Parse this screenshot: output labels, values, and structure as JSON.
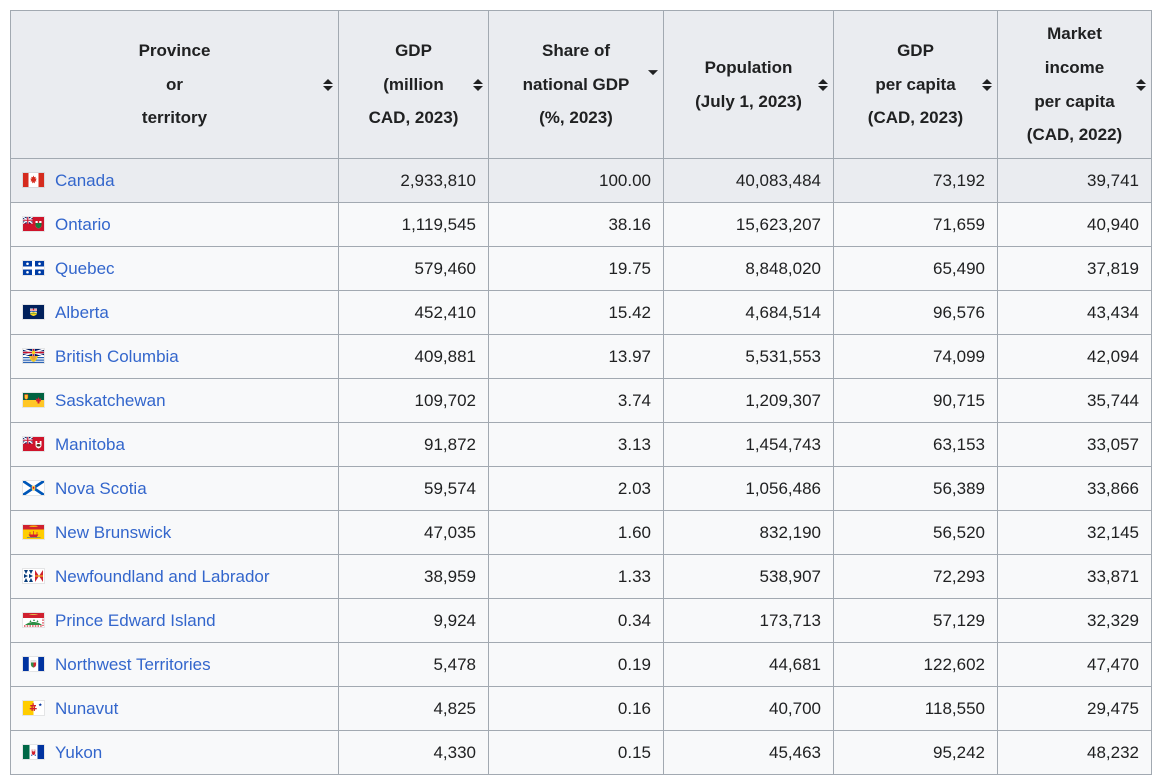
{
  "colors": {
    "header_bg": "#eaecf0",
    "body_bg": "#f8f9fa",
    "highlight_row_bg": "#eaecf0",
    "border": "#a2a9b1",
    "link": "#3366cc",
    "text": "#202122"
  },
  "table": {
    "columns": [
      {
        "id": "name",
        "label_lines": [
          "Province",
          "or",
          "territory"
        ],
        "sort_state": "unsorted",
        "align": "left"
      },
      {
        "id": "gdp",
        "label_lines": [
          "GDP",
          "(million",
          "CAD, 2023)"
        ],
        "sort_state": "unsorted",
        "align": "right"
      },
      {
        "id": "share",
        "label_lines": [
          "Share of",
          "national GDP",
          "(%, 2023)"
        ],
        "sort_state": "desc",
        "align": "right"
      },
      {
        "id": "population",
        "label_lines": [
          "Population",
          "(July 1, 2023)"
        ],
        "sort_state": "unsorted",
        "align": "right"
      },
      {
        "id": "gdp_per_capita",
        "label_lines": [
          "GDP",
          "per capita",
          "(CAD, 2023)"
        ],
        "sort_state": "unsorted",
        "align": "right"
      },
      {
        "id": "market_income",
        "label_lines": [
          "Market",
          "income",
          "per capita",
          "(CAD, 2022)"
        ],
        "sort_state": "unsorted",
        "align": "right"
      }
    ],
    "rows": [
      {
        "name": "Canada",
        "flag": "canada-flag",
        "highlight": true,
        "gdp": "2,933,810",
        "share": "100.00",
        "population": "40,083,484",
        "gdp_per_capita": "73,192",
        "market_income": "39,741"
      },
      {
        "name": "Ontario",
        "flag": "ontario-flag",
        "highlight": false,
        "gdp": "1,119,545",
        "share": "38.16",
        "population": "15,623,207",
        "gdp_per_capita": "71,659",
        "market_income": "40,940"
      },
      {
        "name": "Quebec",
        "flag": "quebec-flag",
        "highlight": false,
        "gdp": "579,460",
        "share": "19.75",
        "population": "8,848,020",
        "gdp_per_capita": "65,490",
        "market_income": "37,819"
      },
      {
        "name": "Alberta",
        "flag": "alberta-flag",
        "highlight": false,
        "gdp": "452,410",
        "share": "15.42",
        "population": "4,684,514",
        "gdp_per_capita": "96,576",
        "market_income": "43,434"
      },
      {
        "name": "British Columbia",
        "flag": "british-columbia-flag",
        "highlight": false,
        "gdp": "409,881",
        "share": "13.97",
        "population": "5,531,553",
        "gdp_per_capita": "74,099",
        "market_income": "42,094"
      },
      {
        "name": "Saskatchewan",
        "flag": "saskatchewan-flag",
        "highlight": false,
        "gdp": "109,702",
        "share": "3.74",
        "population": "1,209,307",
        "gdp_per_capita": "90,715",
        "market_income": "35,744"
      },
      {
        "name": "Manitoba",
        "flag": "manitoba-flag",
        "highlight": false,
        "gdp": "91,872",
        "share": "3.13",
        "population": "1,454,743",
        "gdp_per_capita": "63,153",
        "market_income": "33,057"
      },
      {
        "name": "Nova Scotia",
        "flag": "nova-scotia-flag",
        "highlight": false,
        "gdp": "59,574",
        "share": "2.03",
        "population": "1,056,486",
        "gdp_per_capita": "56,389",
        "market_income": "33,866"
      },
      {
        "name": "New Brunswick",
        "flag": "new-brunswick-flag",
        "highlight": false,
        "gdp": "47,035",
        "share": "1.60",
        "population": "832,190",
        "gdp_per_capita": "56,520",
        "market_income": "32,145"
      },
      {
        "name": "Newfoundland and Labrador",
        "flag": "newfoundland-labrador-flag",
        "highlight": false,
        "gdp": "38,959",
        "share": "1.33",
        "population": "538,907",
        "gdp_per_capita": "72,293",
        "market_income": "33,871"
      },
      {
        "name": "Prince Edward Island",
        "flag": "prince-edward-island-flag",
        "highlight": false,
        "gdp": "9,924",
        "share": "0.34",
        "population": "173,713",
        "gdp_per_capita": "57,129",
        "market_income": "32,329"
      },
      {
        "name": "Northwest Territories",
        "flag": "northwest-territories-flag",
        "highlight": false,
        "gdp": "5,478",
        "share": "0.19",
        "population": "44,681",
        "gdp_per_capita": "122,602",
        "market_income": "47,470"
      },
      {
        "name": "Nunavut",
        "flag": "nunavut-flag",
        "highlight": false,
        "gdp": "4,825",
        "share": "0.16",
        "population": "40,700",
        "gdp_per_capita": "118,550",
        "market_income": "29,475"
      },
      {
        "name": "Yukon",
        "flag": "yukon-flag",
        "highlight": false,
        "gdp": "4,330",
        "share": "0.15",
        "population": "45,463",
        "gdp_per_capita": "95,242",
        "market_income": "48,232"
      }
    ]
  }
}
